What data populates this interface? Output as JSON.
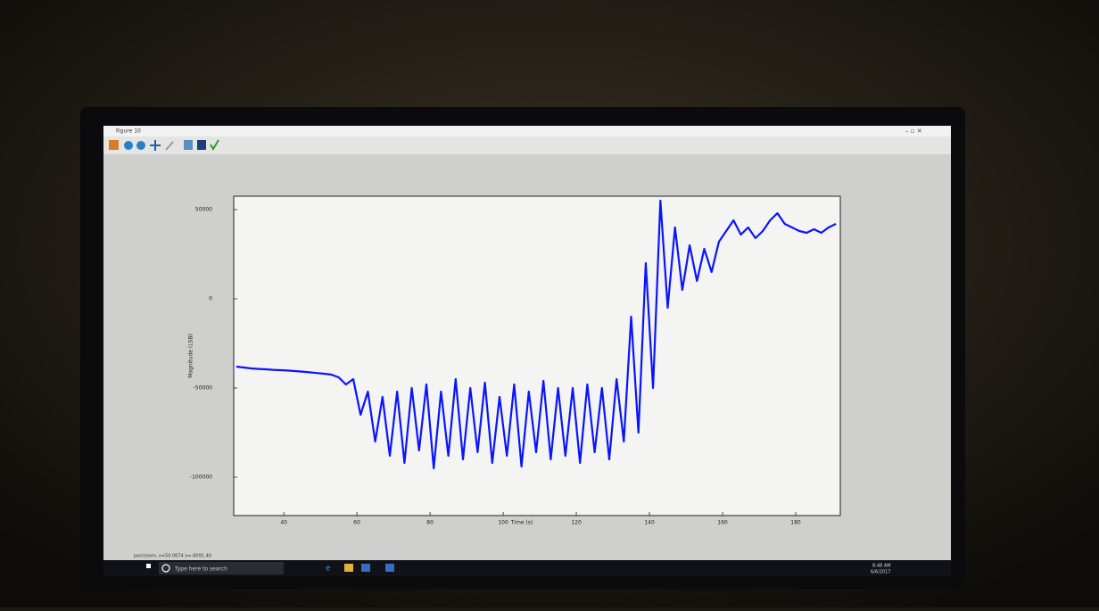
{
  "window": {
    "title": "Figure 10"
  },
  "chart_data": {
    "type": "line",
    "xlabel": "Time (s)",
    "ylabel": "Magnitude (LSB)",
    "x": [
      27,
      29,
      31,
      33,
      35,
      37,
      39,
      41,
      43,
      45,
      47,
      49,
      51,
      53,
      55,
      57,
      59,
      61,
      63,
      65,
      67,
      69,
      71,
      73,
      75,
      77,
      79,
      81,
      83,
      85,
      87,
      89,
      91,
      93,
      95,
      97,
      99,
      101,
      103,
      105,
      107,
      109,
      111,
      113,
      115,
      117,
      119,
      121,
      123,
      125,
      127,
      129,
      131,
      133,
      135,
      137,
      139,
      141,
      143,
      145,
      147,
      149,
      151,
      153,
      155,
      157,
      159,
      161,
      163,
      165,
      167,
      169,
      171,
      173,
      175,
      177,
      179,
      181,
      183,
      185,
      187,
      189,
      191
    ],
    "values": [
      -38000,
      -38500,
      -39000,
      -39300,
      -39500,
      -39800,
      -40000,
      -40200,
      -40500,
      -40800,
      -41200,
      -41600,
      -42000,
      -42500,
      -44000,
      -48000,
      -45000,
      -65000,
      -52000,
      -80000,
      -55000,
      -88000,
      -52000,
      -92000,
      -50000,
      -85000,
      -48000,
      -95000,
      -52000,
      -88000,
      -45000,
      -90000,
      -50000,
      -86000,
      -47000,
      -92000,
      -55000,
      -88000,
      -48000,
      -94000,
      -52000,
      -86000,
      -46000,
      -90000,
      -50000,
      -88000,
      -50000,
      -92000,
      -48000,
      -86000,
      -50000,
      -90000,
      -45000,
      -80000,
      -10000,
      -75000,
      20000,
      -50000,
      55000,
      -5000,
      40000,
      5000,
      30000,
      10000,
      28000,
      15000,
      32000,
      38000,
      44000,
      36000,
      40000,
      34000,
      38000,
      44000,
      48000,
      42000,
      40000,
      38000,
      37000,
      39000,
      37000,
      40000,
      42000
    ],
    "color": "#0a14ff",
    "xlim": [
      26.3,
      192.2
    ],
    "ylim": [
      -121500,
      57500
    ],
    "xticks": [
      40,
      60,
      80,
      100,
      120,
      140,
      160,
      180
    ],
    "yticks": [
      50000,
      0,
      -50000,
      -100000
    ]
  },
  "status_bar": "pan/zoom, x=50.0674    y=-6091.40",
  "taskbar": {
    "search": "Type here to search",
    "time": "8:48 AM",
    "date": "6/6/2017"
  }
}
